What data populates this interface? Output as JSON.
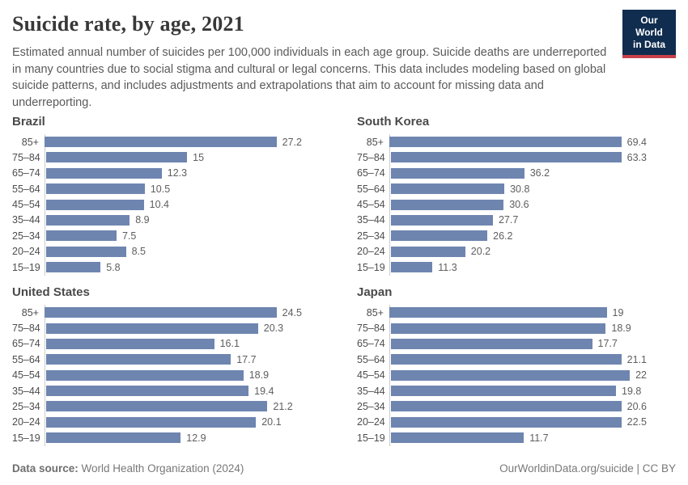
{
  "header": {
    "title": "Suicide rate, by age, 2021",
    "subtitle": "Estimated annual number of suicides per 100,000 individuals in each age group. Suicide deaths are underreported in many countries due to social stigma and cultural or legal concerns. This data includes modeling based on global suicide patterns, and includes adjustments and extrapolations that aim to account for missing data and underreporting.",
    "logo": {
      "line1": "Our World",
      "line2": "in Data"
    }
  },
  "chart_data": [
    {
      "type": "bar",
      "orientation": "horizontal",
      "title": "Brazil",
      "categories": [
        "85+",
        "75–84",
        "65–74",
        "55–64",
        "45–54",
        "35–44",
        "25–34",
        "20–24",
        "15–19"
      ],
      "values": [
        27.2,
        15,
        12.3,
        10.5,
        10.4,
        8.9,
        7.5,
        8.5,
        5.8
      ],
      "xlim": [
        0,
        27.2
      ],
      "grid": false,
      "value_labels": true
    },
    {
      "type": "bar",
      "orientation": "horizontal",
      "title": "South Korea",
      "categories": [
        "85+",
        "75–84",
        "65–74",
        "55–64",
        "45–54",
        "35–44",
        "25–34",
        "20–24",
        "15–19"
      ],
      "values": [
        69.4,
        63.3,
        36.2,
        30.8,
        30.6,
        27.7,
        26.2,
        20.2,
        11.3
      ],
      "xlim": [
        0,
        69.4
      ],
      "grid": false,
      "value_labels": true
    },
    {
      "type": "bar",
      "orientation": "horizontal",
      "title": "United States",
      "categories": [
        "85+",
        "75–84",
        "65–74",
        "55–64",
        "45–54",
        "35–44",
        "25–34",
        "20–24",
        "15–19"
      ],
      "values": [
        24.5,
        20.3,
        16.1,
        17.7,
        18.9,
        19.4,
        21.2,
        20.1,
        12.9
      ],
      "xlim": [
        0,
        24.5
      ],
      "grid": false,
      "value_labels": true
    },
    {
      "type": "bar",
      "orientation": "horizontal",
      "title": "Japan",
      "categories": [
        "85+",
        "75–84",
        "65–74",
        "55–64",
        "45–54",
        "35–44",
        "25–34",
        "20–24",
        "15–19"
      ],
      "values": [
        19,
        18.9,
        17.7,
        21.1,
        22,
        19.8,
        20.6,
        22.5,
        11.7
      ],
      "xlim": [
        0,
        22.5
      ],
      "grid": false,
      "value_labels": true
    }
  ],
  "footer": {
    "source_label": "Data source:",
    "source_value": " World Health Organization (2024)",
    "right_text": "OurWorldinData.org/suicide | CC BY"
  },
  "colors": {
    "bar": "#6e85b0",
    "logo_navy": "#102d4f",
    "logo_red": "#c9404a",
    "title_text": "#383838",
    "subtitle_text": "#5a5a5a",
    "axis_line": "#cccccc",
    "value_text": "#5e5e5e",
    "label_text": "#4d4d4d",
    "footer_text": "#787878"
  }
}
